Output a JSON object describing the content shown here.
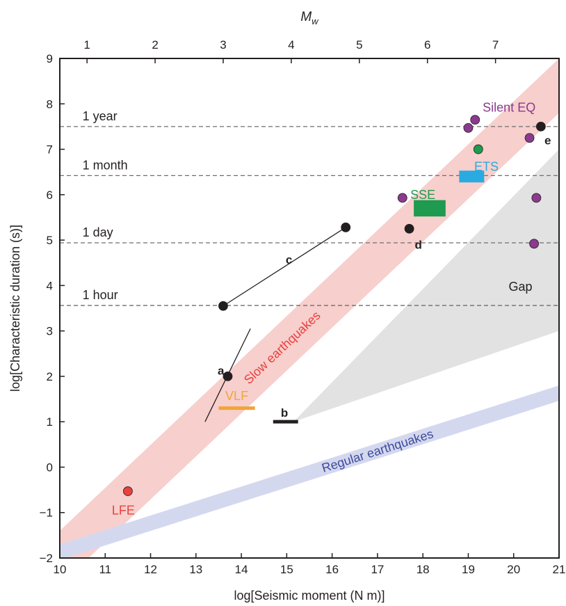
{
  "chart_data": {
    "type": "scatter",
    "xlabel": "log[Seismic moment (N m)]",
    "ylabel": "log[Characteristic duration (s)]",
    "top_axis_label": "M",
    "top_axis_label_sub": "w",
    "xlim": [
      10,
      21
    ],
    "ylim": [
      -2,
      9
    ],
    "x_ticks": [
      10,
      11,
      12,
      13,
      14,
      15,
      16,
      17,
      18,
      19,
      20,
      21
    ],
    "y_ticks": [
      -2,
      -1,
      0,
      1,
      2,
      3,
      4,
      5,
      6,
      7,
      8,
      9
    ],
    "top_ticks": [
      1,
      2,
      3,
      4,
      5,
      6,
      7
    ],
    "grid": false,
    "reference_lines": [
      {
        "label": "1 year",
        "y": 7.5
      },
      {
        "label": "1 month",
        "y": 6.42
      },
      {
        "label": "1 day",
        "y": 4.94
      },
      {
        "label": "1 hour",
        "y": 3.56
      }
    ],
    "bands": [
      {
        "name": "Slow earthquakes",
        "color": "#f7cfcc",
        "label_color": "#e8403f",
        "from": [
          10,
          -2
        ],
        "to": [
          21,
          8.4
        ],
        "half_width": 0.6
      },
      {
        "name": "Regular earthquakes",
        "color": "#d4d8ef",
        "label_color": "#3d4a9b",
        "from": [
          10,
          -1.87
        ],
        "to": [
          21,
          1.63
        ],
        "half_width": 0.17
      }
    ],
    "gap_region": {
      "label": "Gap",
      "color": "#e2e2e2",
      "polygon": [
        [
          15.15,
          1.0
        ],
        [
          21,
          7.0
        ],
        [
          21,
          3.0
        ]
      ]
    },
    "groups": [
      {
        "name": "LFE",
        "color": "#e8403f",
        "points": [
          [
            11.5,
            -0.53
          ]
        ],
        "label_pos": [
          11.4,
          -0.95
        ]
      },
      {
        "name": "VLF",
        "color": "#f2a43a",
        "segment": [
          [
            13.5,
            1.3
          ],
          [
            14.3,
            1.3
          ]
        ],
        "label_pos": [
          13.9,
          1.57
        ]
      },
      {
        "name": "SSE",
        "color": "#1e9b4e",
        "rect": [
          [
            17.8,
            5.52
          ],
          [
            18.5,
            5.88
          ]
        ],
        "label_pos": [
          18.0,
          6.0
        ]
      },
      {
        "name": "ETS",
        "color": "#29abe2",
        "rect": [
          [
            18.8,
            6.27
          ],
          [
            19.35,
            6.53
          ]
        ],
        "label_pos": [
          19.4,
          6.62
        ]
      },
      {
        "name": "Silent EQ",
        "color": "#8b3a8e",
        "points": [
          [
            17.55,
            5.93
          ],
          [
            19.0,
            7.47
          ],
          [
            19.15,
            7.65
          ],
          [
            20.35,
            7.25
          ],
          [
            20.5,
            5.93
          ],
          [
            20.45,
            4.92
          ]
        ],
        "label_pos": [
          19.9,
          7.92
        ]
      },
      {
        "name": "",
        "color": "#1e9b4e",
        "points": [
          [
            19.22,
            7.0
          ]
        ]
      },
      {
        "name": "a",
        "color": "#231f20",
        "points": [
          [
            13.7,
            2.0
          ]
        ],
        "segment": [
          [
            13.2,
            1.0
          ],
          [
            14.2,
            3.05
          ]
        ],
        "label_pos": [
          13.55,
          2.13
        ]
      },
      {
        "name": "b",
        "color": "#231f20",
        "segment": [
          [
            14.7,
            1.0
          ],
          [
            15.25,
            1.0
          ]
        ],
        "label_pos": [
          14.95,
          1.2
        ]
      },
      {
        "name": "c",
        "color": "#231f20",
        "points": [
          [
            13.6,
            3.55
          ],
          [
            16.3,
            5.28
          ]
        ],
        "segment": [
          [
            13.6,
            3.55
          ],
          [
            16.3,
            5.28
          ]
        ],
        "label_pos": [
          15.05,
          4.57
        ]
      },
      {
        "name": "d",
        "color": "#231f20",
        "points": [
          [
            17.7,
            5.25
          ]
        ],
        "label_pos": [
          17.9,
          4.9
        ]
      },
      {
        "name": "e",
        "color": "#231f20",
        "points": [
          [
            20.6,
            7.5
          ]
        ],
        "label_pos": [
          20.75,
          7.2
        ]
      }
    ]
  }
}
